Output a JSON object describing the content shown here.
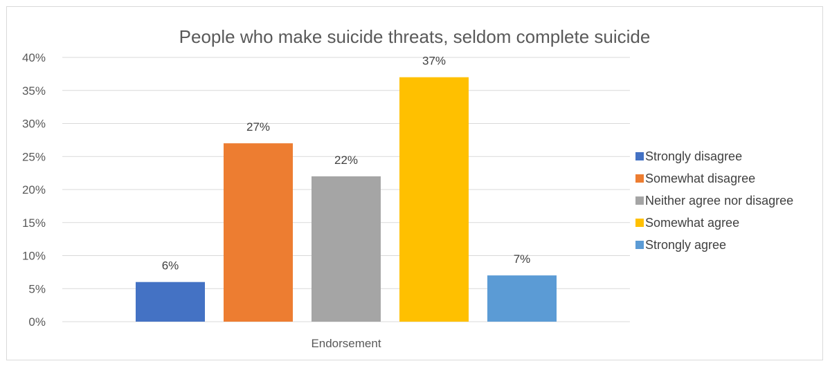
{
  "chart_data": {
    "type": "bar",
    "title": "People who make suicide threats, seldom complete suicide",
    "xlabel": "",
    "ylabel": "",
    "categories": [
      "Endorsement"
    ],
    "series": [
      {
        "name": "Strongly disagree",
        "values": [
          6
        ],
        "color": "#4472c4"
      },
      {
        "name": "Somewhat disagree",
        "values": [
          27
        ],
        "color": "#ed7d31"
      },
      {
        "name": "Neither agree nor disagree",
        "values": [
          22
        ],
        "color": "#a5a5a5"
      },
      {
        "name": "Somewhat agree",
        "values": [
          37
        ],
        "color": "#ffc000"
      },
      {
        "name": "Strongly agree",
        "values": [
          7
        ],
        "color": "#5b9bd5"
      }
    ],
    "data_labels": [
      "6%",
      "27%",
      "22%",
      "37%",
      "7%"
    ],
    "y_ticks": [
      "0%",
      "5%",
      "10%",
      "15%",
      "20%",
      "25%",
      "30%",
      "35%",
      "40%"
    ],
    "ylim": [
      0,
      40
    ],
    "grid": true,
    "legend_position": "right"
  }
}
